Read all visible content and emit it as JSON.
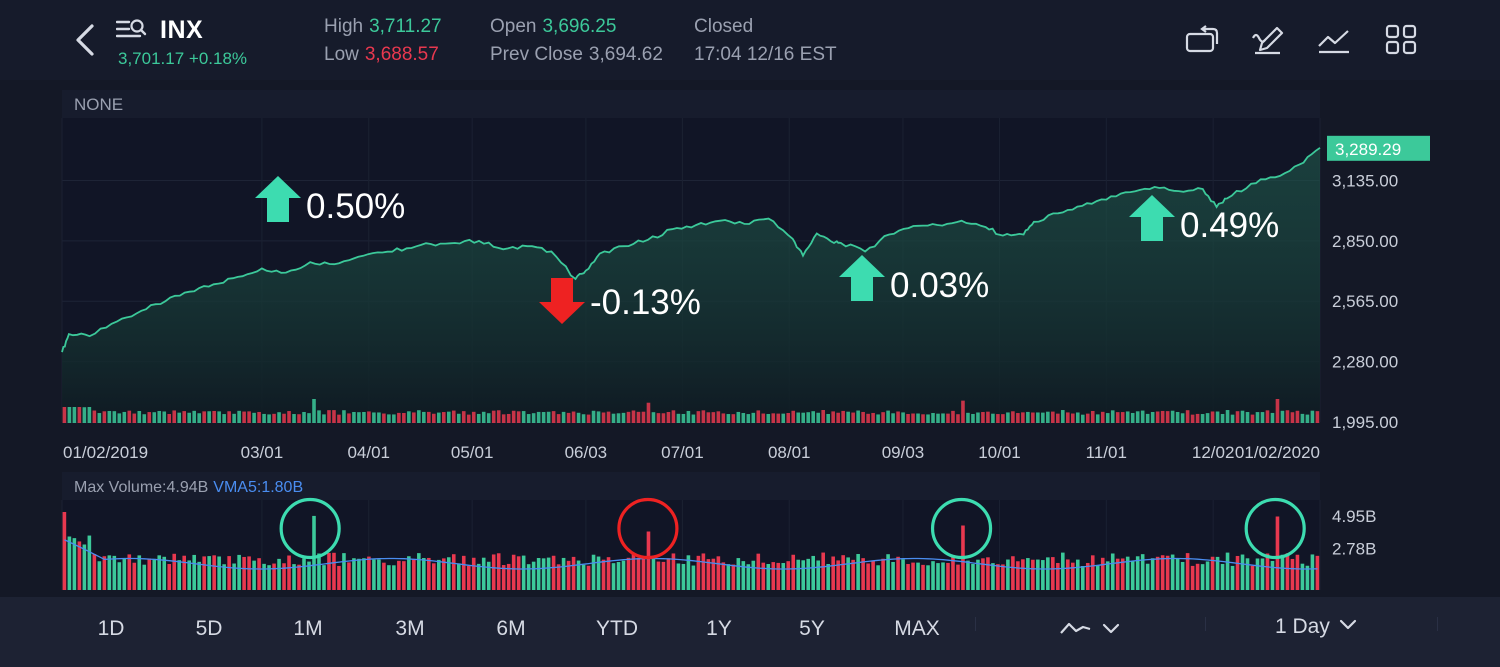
{
  "header": {
    "symbol": "INX",
    "price": "3,701.17",
    "change": "+0.18%",
    "high_label": "High",
    "high_value": "3,711.27",
    "low_label": "Low",
    "low_value": "3,688.57",
    "open_label": "Open",
    "open_value": "3,696.25",
    "prev_label": "Prev Close",
    "prev_value": "3,694.62",
    "status": "Closed",
    "time": "17:04 12/16 EST"
  },
  "toolbar_icons": [
    "rotate-screen-icon",
    "draw-icon",
    "indicator-icon",
    "grid-icon"
  ],
  "colors": {
    "up": "#3cc99a",
    "down": "#e8384f",
    "vma": "#4a8df0",
    "annotation_up": "#3ddcb0",
    "annotation_down": "#ee2222",
    "background": "#141826",
    "panel": "#111526"
  },
  "chart_data": [
    {
      "type": "area",
      "indicator_label": "NONE",
      "x_tick_labels": [
        "01/02/2019",
        "03/01",
        "04/01",
        "05/01",
        "06/03",
        "07/01",
        "08/01",
        "09/03",
        "10/01",
        "11/01",
        "12/02",
        "01/02/2020"
      ],
      "y_tick_labels": [
        "3,135.00",
        "2,850.00",
        "2,565.00",
        "2,280.00",
        "1,995.00"
      ],
      "y_ticks": [
        3135,
        2850,
        2565,
        2280,
        1995
      ],
      "ylim": [
        1995,
        3430
      ],
      "last_value_label": "3,289.29",
      "last_value": 3289.29,
      "series": [
        {
          "x": [
            "2019-01-02",
            "2019-01-04",
            "2019-01-10",
            "2019-01-18",
            "2019-01-25",
            "2019-02-01",
            "2019-02-08",
            "2019-02-15",
            "2019-02-22",
            "2019-03-01",
            "2019-03-08",
            "2019-03-15",
            "2019-03-22",
            "2019-03-29",
            "2019-04-05",
            "2019-04-12",
            "2019-04-19",
            "2019-04-26",
            "2019-05-03",
            "2019-05-10",
            "2019-05-17",
            "2019-05-24",
            "2019-05-31",
            "2019-06-03",
            "2019-06-07",
            "2019-06-14",
            "2019-06-21",
            "2019-06-28",
            "2019-07-05",
            "2019-07-12",
            "2019-07-19",
            "2019-07-26",
            "2019-08-02",
            "2019-08-05",
            "2019-08-09",
            "2019-08-14",
            "2019-08-16",
            "2019-08-23",
            "2019-08-30",
            "2019-09-06",
            "2019-09-13",
            "2019-09-20",
            "2019-09-27",
            "2019-10-02",
            "2019-10-08",
            "2019-10-11",
            "2019-10-18",
            "2019-10-25",
            "2019-11-01",
            "2019-11-08",
            "2019-11-15",
            "2019-11-22",
            "2019-11-29",
            "2019-12-03",
            "2019-12-06",
            "2019-12-13",
            "2019-12-20",
            "2019-12-27",
            "2020-01-02"
          ],
          "values": [
            2325,
            2410,
            2400,
            2470,
            2520,
            2565,
            2610,
            2645,
            2680,
            2720,
            2700,
            2750,
            2740,
            2775,
            2795,
            2815,
            2835,
            2840,
            2850,
            2810,
            2825,
            2800,
            2670,
            2710,
            2790,
            2825,
            2855,
            2905,
            2925,
            2945,
            2930,
            2955,
            2860,
            2780,
            2885,
            2840,
            2840,
            2800,
            2880,
            2920,
            2925,
            2945,
            2915,
            2875,
            2880,
            2940,
            2980,
            3015,
            3045,
            3080,
            3105,
            3085,
            3095,
            3010,
            3050,
            3120,
            3150,
            3210,
            3289.29
          ]
        }
      ],
      "annotations": [
        {
          "text": "0.50%",
          "direction": "up"
        },
        {
          "text": "-0.13%",
          "direction": "down"
        },
        {
          "text": "0.03%",
          "direction": "up"
        },
        {
          "text": "0.49%",
          "direction": "up"
        }
      ]
    },
    {
      "type": "bar",
      "title": "Max Volume:4.94B",
      "vma_label": "VMA5:1.80B",
      "y_tick_labels": [
        "4.95B",
        "2.78B"
      ],
      "y_ticks": [
        4.95,
        2.78
      ],
      "ylim": [
        0,
        6
      ],
      "n_bars": 252,
      "spikes": [
        {
          "date": "2019-03-15",
          "value": 4.94,
          "color": "up"
        },
        {
          "date": "2019-06-21",
          "value": 3.9,
          "color": "down"
        },
        {
          "date": "2019-09-20",
          "value": 4.3,
          "color": "down"
        },
        {
          "date": "2019-12-20",
          "value": 4.9,
          "color": "down"
        }
      ],
      "circled": [
        {
          "date": "2019-03-15",
          "color": "annotation_up"
        },
        {
          "date": "2019-06-21",
          "color": "annotation_down"
        },
        {
          "date": "2019-09-20",
          "color": "annotation_up"
        },
        {
          "date": "2019-12-20",
          "color": "annotation_up"
        }
      ]
    }
  ],
  "range_tabs": [
    "1D",
    "5D",
    "1M",
    "3M",
    "6M",
    "YTD",
    "1Y",
    "5Y",
    "MAX"
  ],
  "chart_style_icon": "line-chart-style-icon",
  "interval": "1 Day"
}
